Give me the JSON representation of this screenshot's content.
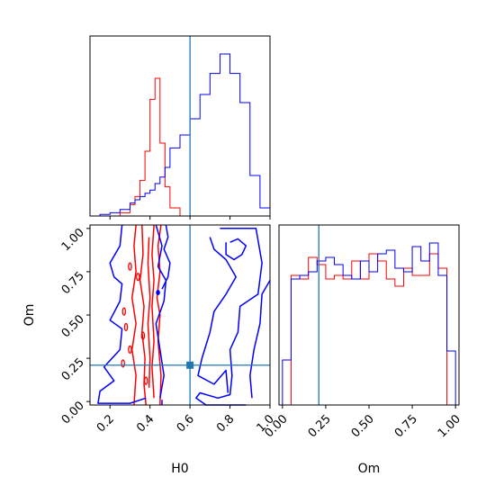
{
  "chart_data": {
    "type": "corner",
    "parameters": [
      "H0",
      "Om"
    ],
    "truth": {
      "H0": 0.6,
      "Om": 0.21
    },
    "colors": {
      "series_a": "#ff0000",
      "series_b": "#0000ff",
      "truth": "#1f77b4"
    },
    "tick_labels": {
      "H0": [
        "0.2",
        "0.4",
        "0.6",
        "0.8",
        "1.0"
      ],
      "Om": [
        "0.00",
        "0.25",
        "0.50",
        "0.75",
        "1.00"
      ]
    },
    "xlabels": {
      "bottom_left": "H0",
      "bottom_right": "Om"
    },
    "ylabel": "Om",
    "hist_H0": {
      "xlim": [
        0.1,
        1.0
      ],
      "bin_edges": [
        0.1,
        0.15,
        0.2,
        0.25,
        0.3,
        0.325,
        0.35,
        0.375,
        0.4,
        0.425,
        0.45,
        0.475,
        0.5,
        0.55,
        0.6,
        0.65,
        0.7,
        0.75,
        0.8,
        0.85,
        0.9,
        0.95,
        1.0
      ],
      "series": [
        {
          "color": "red",
          "counts": [
            0,
            0,
            0,
            2,
            7,
            12,
            22,
            40,
            72,
            85,
            45,
            18,
            5,
            0,
            0,
            0,
            0,
            0,
            0,
            0,
            0,
            0
          ]
        },
        {
          "color": "blue",
          "counts": [
            0,
            1,
            2,
            4,
            8,
            10,
            12,
            14,
            16,
            20,
            24,
            30,
            42,
            50,
            60,
            75,
            88,
            100,
            88,
            70,
            25,
            5
          ]
        }
      ]
    },
    "hist_Om": {
      "xlim": [
        -0.02,
        1.02
      ],
      "bin_edges": [
        0.0,
        0.05,
        0.1,
        0.15,
        0.2,
        0.25,
        0.3,
        0.35,
        0.4,
        0.45,
        0.5,
        0.55,
        0.6,
        0.65,
        0.7,
        0.75,
        0.8,
        0.85,
        0.9,
        0.95,
        1.0
      ],
      "series": [
        {
          "color": "red",
          "counts": [
            0,
            72,
            70,
            82,
            78,
            70,
            72,
            70,
            80,
            70,
            84,
            80,
            70,
            66,
            76,
            72,
            72,
            84,
            76,
            0
          ]
        },
        {
          "color": "blue",
          "counts": [
            25,
            70,
            72,
            74,
            80,
            82,
            78,
            72,
            70,
            80,
            74,
            84,
            86,
            76,
            74,
            88,
            80,
            90,
            72,
            30
          ]
        }
      ]
    },
    "contour_panel": {
      "xlim": [
        0.1,
        1.0
      ],
      "ylim": [
        -0.02,
        1.02
      ]
    }
  }
}
